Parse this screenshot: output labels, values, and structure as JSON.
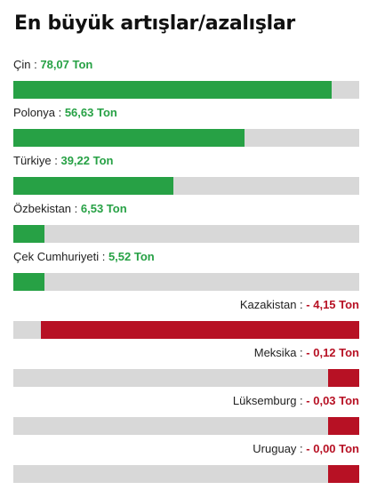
{
  "chart_data": {
    "type": "bar",
    "title": "En büyük artışlar/azalışlar",
    "orientation": "horizontal",
    "unit": "Ton",
    "separator": " : ",
    "colors": {
      "increase": "#27a145",
      "decrease": "#b71124",
      "track": "#d8d8d8"
    },
    "items": [
      {
        "category": "Çin",
        "value_label": "78,07 Ton",
        "value": 78.07,
        "direction": "increase"
      },
      {
        "category": "Polonya",
        "value_label": "56,63 Ton",
        "value": 56.63,
        "direction": "increase"
      },
      {
        "category": "Türkiye",
        "value_label": "39,22 Ton",
        "value": 39.22,
        "direction": "increase"
      },
      {
        "category": "Özbekistan",
        "value_label": "6,53 Ton",
        "value": 6.53,
        "direction": "increase"
      },
      {
        "category": "Çek Cumhuriyeti",
        "value_label": "5,52 Ton",
        "value": 5.52,
        "direction": "increase"
      },
      {
        "category": "Kazakistan",
        "value_label": "- 4,15 Ton",
        "value": -4.15,
        "direction": "decrease"
      },
      {
        "category": "Meksika",
        "value_label": "- 0,12 Ton",
        "value": -0.12,
        "direction": "decrease"
      },
      {
        "category": "Lüksemburg",
        "value_label": "- 0,03 Ton",
        "value": -0.03,
        "direction": "decrease"
      },
      {
        "category": "Uruguay",
        "value_label": "- 0,00 Ton",
        "value": -0.0,
        "direction": "decrease"
      }
    ]
  }
}
